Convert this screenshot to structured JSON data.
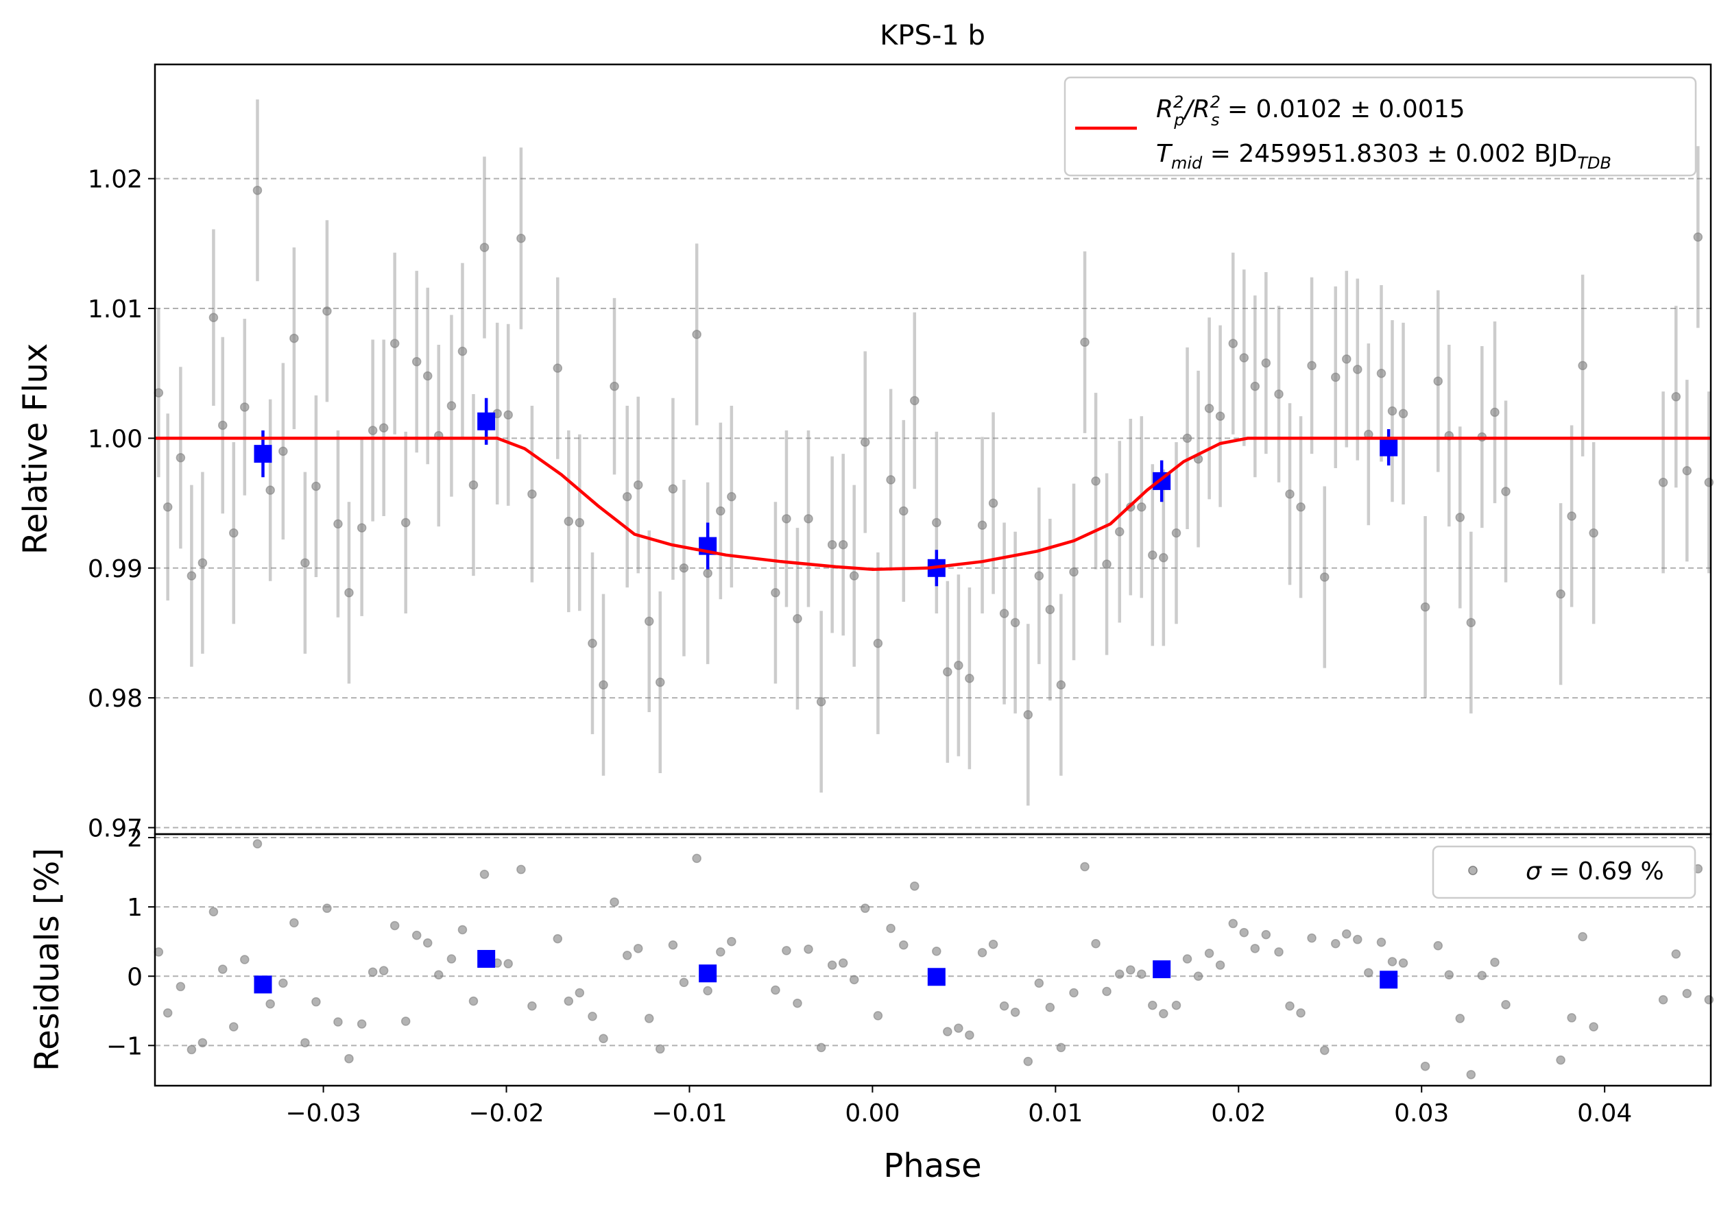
{
  "chart_data": [
    {
      "type": "scatter",
      "title": "KPS-1 b",
      "xlabel": "",
      "ylabel": "Relative Flux",
      "xlim": [
        -0.0392,
        0.0458
      ],
      "ylim": [
        0.9695,
        1.0288
      ],
      "grid": "y dashed",
      "legend_position": "top-right",
      "y_ticks": [
        0.97,
        0.98,
        0.99,
        1.0,
        1.01,
        1.02
      ],
      "y_tick_labels": [
        "0.97",
        "0.98",
        "0.99",
        "1.00",
        "1.01",
        "1.02"
      ],
      "legend": {
        "line_main_1": "R",
        "line_sub_1a": "p",
        "line_sup_1a": "2",
        "line_sep_1": "/R",
        "line_sub_1b": "s",
        "line_sup_1b": "2",
        "line_rest_1": " = 0.0102 ± 0.0015",
        "line_main_2": "T",
        "line_sub_2a": "mid",
        "line_rest_2": " = 2459951.8303 ± 0.002 BJD",
        "line_sub_2b": "TDB"
      },
      "model": {
        "color": "#ff0000",
        "x": [
          -0.0392,
          -0.0205,
          -0.019,
          -0.017,
          -0.015,
          -0.013,
          -0.011,
          -0.008,
          -0.005,
          -0.002,
          0.0,
          0.003,
          0.006,
          0.009,
          0.011,
          0.013,
          0.015,
          0.017,
          0.019,
          0.0205,
          0.0458
        ],
        "y": [
          1.0,
          1.0,
          0.9992,
          0.9972,
          0.9948,
          0.9926,
          0.9918,
          0.991,
          0.9905,
          0.9901,
          0.9899,
          0.99,
          0.9905,
          0.9913,
          0.9921,
          0.9934,
          0.996,
          0.9982,
          0.9996,
          1.0,
          1.0
        ]
      },
      "unbinned": {
        "color": "#808080",
        "points": [
          [
            -0.039,
            1.0035,
            0.0065
          ],
          [
            -0.0385,
            0.9947,
            0.0072
          ],
          [
            -0.0378,
            0.9985,
            0.007
          ],
          [
            -0.0372,
            0.9894,
            0.007
          ],
          [
            -0.0366,
            0.9904,
            0.007
          ],
          [
            -0.036,
            1.0093,
            0.0068
          ],
          [
            -0.0355,
            1.001,
            0.0068
          ],
          [
            -0.0349,
            0.9927,
            0.007
          ],
          [
            -0.0343,
            1.0024,
            0.0068
          ],
          [
            -0.0336,
            1.0191,
            0.007
          ],
          [
            -0.0329,
            0.996,
            0.007
          ],
          [
            -0.0322,
            0.999,
            0.0068
          ],
          [
            -0.0316,
            1.0077,
            0.007
          ],
          [
            -0.031,
            0.9904,
            0.007
          ],
          [
            -0.0304,
            0.9963,
            0.007
          ],
          [
            -0.0298,
            1.0098,
            0.007
          ],
          [
            -0.0292,
            0.9934,
            0.0072
          ],
          [
            -0.0286,
            0.9881,
            0.007
          ],
          [
            -0.0279,
            0.9931,
            0.0068
          ],
          [
            -0.0273,
            1.0006,
            0.007
          ],
          [
            -0.0267,
            1.0008,
            0.0068
          ],
          [
            -0.0261,
            1.0073,
            0.007
          ],
          [
            -0.0255,
            0.9935,
            0.007
          ],
          [
            -0.0249,
            1.0059,
            0.007
          ],
          [
            -0.0243,
            1.0048,
            0.0068
          ],
          [
            -0.0237,
            1.0002,
            0.007
          ],
          [
            -0.023,
            1.0025,
            0.007
          ],
          [
            -0.0224,
            1.0067,
            0.0068
          ],
          [
            -0.0218,
            0.9964,
            0.007
          ],
          [
            -0.0212,
            1.0147,
            0.007
          ],
          [
            -0.0205,
            1.0019,
            0.007
          ],
          [
            -0.0199,
            1.0018,
            0.007
          ],
          [
            -0.0192,
            1.0154,
            0.007
          ],
          [
            -0.0186,
            0.9957,
            0.0068
          ],
          [
            -0.0172,
            1.0054,
            0.007
          ],
          [
            -0.0166,
            0.9936,
            0.007
          ],
          [
            -0.016,
            0.9935,
            0.0068
          ],
          [
            -0.0153,
            0.9842,
            0.007
          ],
          [
            -0.0147,
            0.981,
            0.007
          ],
          [
            -0.0141,
            1.004,
            0.0068
          ],
          [
            -0.0134,
            0.9955,
            0.007
          ],
          [
            -0.0128,
            0.9964,
            0.0068
          ],
          [
            -0.0122,
            0.9859,
            0.007
          ],
          [
            -0.0116,
            0.9812,
            0.007
          ],
          [
            -0.0109,
            0.9961,
            0.007
          ],
          [
            -0.0103,
            0.99,
            0.0068
          ],
          [
            -0.0096,
            1.008,
            0.007
          ],
          [
            -0.009,
            0.9896,
            0.007
          ],
          [
            -0.0083,
            0.9944,
            0.0068
          ],
          [
            -0.0077,
            0.9955,
            0.007
          ],
          [
            -0.0053,
            0.9881,
            0.007
          ],
          [
            -0.0047,
            0.9938,
            0.0068
          ],
          [
            -0.0041,
            0.9861,
            0.007
          ],
          [
            -0.0035,
            0.9938,
            0.0068
          ],
          [
            -0.0028,
            0.9797,
            0.007
          ],
          [
            -0.0022,
            0.9918,
            0.0068
          ],
          [
            -0.0016,
            0.9918,
            0.007
          ],
          [
            -0.001,
            0.9894,
            0.007
          ],
          [
            -0.0004,
            0.9997,
            0.007
          ],
          [
            0.0003,
            0.9842,
            0.007
          ],
          [
            0.001,
            0.9968,
            0.007
          ],
          [
            0.0017,
            0.9944,
            0.007
          ],
          [
            0.0023,
            1.0029,
            0.0068
          ],
          [
            0.0035,
            0.9935,
            0.007
          ],
          [
            0.0041,
            0.982,
            0.007
          ],
          [
            0.0047,
            0.9825,
            0.007
          ],
          [
            0.0053,
            0.9815,
            0.007
          ],
          [
            0.006,
            0.9933,
            0.0068
          ],
          [
            0.0066,
            0.995,
            0.007
          ],
          [
            0.0072,
            0.9865,
            0.007
          ],
          [
            0.0078,
            0.9858,
            0.007
          ],
          [
            0.0085,
            0.9787,
            0.007
          ],
          [
            0.0091,
            0.9894,
            0.0068
          ],
          [
            0.0097,
            0.9868,
            0.007
          ],
          [
            0.0103,
            0.981,
            0.007
          ],
          [
            0.011,
            0.9897,
            0.0068
          ],
          [
            0.0116,
            1.0074,
            0.007
          ],
          [
            0.0122,
            0.9967,
            0.0068
          ],
          [
            0.0128,
            0.9903,
            0.007
          ],
          [
            0.0135,
            0.9928,
            0.007
          ],
          [
            0.0141,
            0.9947,
            0.0068
          ],
          [
            0.0147,
            0.9947,
            0.007
          ],
          [
            0.0153,
            0.991,
            0.007
          ],
          [
            0.0159,
            0.9908,
            0.0068
          ],
          [
            0.0166,
            0.9927,
            0.007
          ],
          [
            0.0172,
            1.0,
            0.007
          ],
          [
            0.0178,
            0.9984,
            0.0068
          ],
          [
            0.0184,
            1.0023,
            0.007
          ],
          [
            0.019,
            1.0017,
            0.007
          ],
          [
            0.0197,
            1.0073,
            0.007
          ],
          [
            0.0203,
            1.0062,
            0.0068
          ],
          [
            0.0209,
            1.004,
            0.007
          ],
          [
            0.0215,
            1.0058,
            0.007
          ],
          [
            0.0222,
            1.0034,
            0.0068
          ],
          [
            0.0228,
            0.9957,
            0.007
          ],
          [
            0.0234,
            0.9947,
            0.007
          ],
          [
            0.024,
            1.0056,
            0.0068
          ],
          [
            0.0247,
            0.9893,
            0.007
          ],
          [
            0.0253,
            1.0047,
            0.007
          ],
          [
            0.0259,
            1.0061,
            0.0068
          ],
          [
            0.0265,
            1.0053,
            0.007
          ],
          [
            0.0271,
            1.0003,
            0.007
          ],
          [
            0.0278,
            1.005,
            0.0068
          ],
          [
            0.0284,
            1.0021,
            0.007
          ],
          [
            0.029,
            1.0019,
            0.007
          ],
          [
            0.0302,
            0.987,
            0.007
          ],
          [
            0.0309,
            1.0044,
            0.007
          ],
          [
            0.0315,
            1.0002,
            0.007
          ],
          [
            0.0321,
            0.9939,
            0.007
          ],
          [
            0.0327,
            0.9858,
            0.007
          ],
          [
            0.0333,
            1.0001,
            0.007
          ],
          [
            0.034,
            1.002,
            0.007
          ],
          [
            0.0346,
            0.9959,
            0.007
          ],
          [
            0.0376,
            0.988,
            0.007
          ],
          [
            0.0382,
            0.994,
            0.007
          ],
          [
            0.0388,
            1.0056,
            0.007
          ],
          [
            0.0394,
            0.9927,
            0.007
          ],
          [
            0.0432,
            0.9966,
            0.007
          ],
          [
            0.0439,
            1.0032,
            0.007
          ],
          [
            0.0445,
            0.9975,
            0.007
          ],
          [
            0.0451,
            1.0155,
            0.007
          ],
          [
            0.0457,
            0.9966,
            0.007
          ]
        ]
      },
      "binned": {
        "color": "#0000ff",
        "points": [
          [
            -0.0333,
            0.9988,
            0.0018
          ],
          [
            -0.0211,
            1.0013,
            0.0018
          ],
          [
            -0.009,
            0.9917,
            0.0018
          ],
          [
            0.0035,
            0.99,
            0.0014
          ],
          [
            0.0158,
            0.9967,
            0.0016
          ],
          [
            0.0282,
            0.9993,
            0.0014
          ]
        ]
      }
    },
    {
      "type": "scatter",
      "title": "",
      "xlabel": "Phase",
      "ylabel": "Residuals [%]",
      "xlim": [
        -0.0392,
        0.0458
      ],
      "ylim": [
        -1.58,
        2.05
      ],
      "grid": "y dashed",
      "legend_position": "top-right",
      "x_ticks": [
        -0.03,
        -0.02,
        -0.01,
        0.0,
        0.01,
        0.02,
        0.03,
        0.04
      ],
      "x_tick_labels": [
        "−0.03",
        "−0.02",
        "−0.01",
        "0.00",
        "0.01",
        "0.02",
        "0.03",
        "0.04"
      ],
      "y_ticks": [
        -1,
        0,
        1,
        2
      ],
      "y_tick_labels": [
        "−1",
        "0",
        "1",
        "2"
      ],
      "legend": {
        "sigma_symbol": "σ",
        "sigma_rest": " = 0.69 %"
      },
      "unbinned": {
        "color": "#808080",
        "values": [
          0.35,
          -0.53,
          -0.15,
          -1.06,
          -0.96,
          0.93,
          0.1,
          -0.73,
          0.24,
          1.91,
          -0.4,
          -0.1,
          0.77,
          -0.96,
          -0.37,
          0.98,
          -0.66,
          -1.19,
          -0.69,
          0.06,
          0.08,
          0.73,
          -0.65,
          0.59,
          0.48,
          0.02,
          0.25,
          0.67,
          -0.36,
          1.47,
          0.19,
          0.18,
          1.54,
          -0.43,
          0.54,
          -0.36,
          -0.24,
          -0.58,
          -0.9,
          1.07,
          0.3,
          0.4,
          -0.61,
          -1.05,
          0.45,
          -0.09,
          1.7,
          -0.21,
          0.35,
          0.5,
          -0.2,
          0.37,
          -0.39,
          0.39,
          -1.03,
          0.16,
          0.19,
          -0.05,
          0.98,
          -0.57,
          0.69,
          0.45,
          1.3,
          0.36,
          -0.8,
          -0.75,
          -0.85,
          0.34,
          0.46,
          -0.43,
          -0.52,
          -1.23,
          -0.1,
          -0.45,
          -1.03,
          -0.24,
          1.58,
          0.47,
          -0.22,
          0.03,
          0.09,
          0.03,
          -0.42,
          -0.54,
          -0.42,
          0.25,
          0.0,
          0.33,
          0.16,
          0.76,
          0.63,
          0.4,
          0.6,
          0.35,
          -0.43,
          -0.53,
          0.55,
          -1.07,
          0.47,
          0.61,
          0.53,
          0.05,
          0.49,
          0.21,
          0.19,
          -1.3,
          0.44,
          0.02,
          -0.61,
          -1.42,
          0.01,
          0.2,
          -0.41,
          -1.21,
          -0.6,
          0.57,
          -0.73,
          -0.34,
          0.32,
          -0.25,
          1.55,
          -0.34
        ]
      },
      "binned": {
        "color": "#0000ff",
        "values": [
          -0.12,
          0.25,
          0.04,
          -0.01,
          0.1,
          -0.05
        ]
      }
    }
  ]
}
